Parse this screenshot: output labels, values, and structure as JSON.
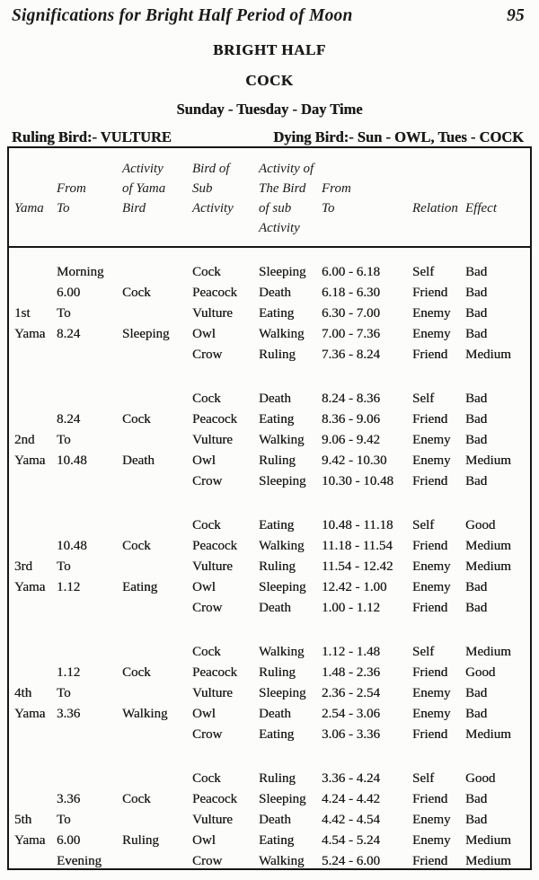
{
  "page": {
    "header_title": "Significations for Bright Half Period of Moon",
    "page_number": "95",
    "section_title": "BRIGHT HALF",
    "bird_title": "COCK",
    "day_line": "Sunday - Tuesday - Day Time",
    "ruling_bird": "Ruling Bird:- VULTURE",
    "dying_bird": "Dying Bird:- Sun - OWL, Tues - COCK"
  },
  "table": {
    "column_names": [
      "Yama",
      "From To",
      "Activity of Yama Bird",
      "Bird of Sub Activity",
      "Activity of The Bird of sub Activity",
      "From To",
      "Relation",
      "Effect"
    ],
    "header_rows": [
      [
        "",
        "",
        "Activity",
        "Bird of",
        "Activity of",
        "",
        "",
        ""
      ],
      [
        "",
        "From",
        "of Yama",
        "Sub",
        "The Bird",
        "From",
        "",
        ""
      ],
      [
        "Yama",
        "To",
        "Bird",
        "Activity",
        "of sub",
        "To",
        "Relation",
        "Effect"
      ],
      [
        "",
        "",
        "",
        "",
        "Activity",
        "",
        "",
        ""
      ]
    ],
    "blocks": [
      {
        "rows": [
          [
            "",
            "Morning",
            "",
            "Cock",
            "Sleeping",
            "6.00 - 6.18",
            "Self",
            "Bad"
          ],
          [
            "",
            "6.00",
            "Cock",
            "Peacock",
            "Death",
            "6.18 - 6.30",
            "Friend",
            "Bad"
          ],
          [
            "1st",
            "To",
            "",
            "Vulture",
            "Eating",
            "6.30 - 7.00",
            "Enemy",
            "Bad"
          ],
          [
            "Yama",
            "8.24",
            "Sleeping",
            "Owl",
            "Walking",
            "7.00 - 7.36",
            "Enemy",
            "Bad"
          ],
          [
            "",
            "",
            "",
            "Crow",
            "Ruling",
            "7.36 - 8.24",
            "Friend",
            "Medium"
          ]
        ]
      },
      {
        "rows": [
          [
            "",
            "",
            "",
            "Cock",
            "Death",
            "8.24 - 8.36",
            "Self",
            "Bad"
          ],
          [
            "",
            "8.24",
            "Cock",
            "Peacock",
            "Eating",
            "8.36 - 9.06",
            "Friend",
            "Bad"
          ],
          [
            "2nd",
            "To",
            "",
            "Vulture",
            "Walking",
            "9.06 - 9.42",
            "Enemy",
            "Bad"
          ],
          [
            "Yama",
            "10.48",
            "Death",
            "Owl",
            "Ruling",
            "9.42 - 10.30",
            "Enemy",
            "Medium"
          ],
          [
            "",
            "",
            "",
            "Crow",
            "Sleeping",
            "10.30 - 10.48",
            "Friend",
            "Bad"
          ]
        ]
      },
      {
        "rows": [
          [
            "",
            "",
            "",
            "Cock",
            "Eating",
            "10.48 - 11.18",
            "Self",
            "Good"
          ],
          [
            "",
            "10.48",
            "Cock",
            "Peacock",
            "Walking",
            "11.18 - 11.54",
            "Friend",
            "Medium"
          ],
          [
            "3rd",
            "To",
            "",
            "Vulture",
            "Ruling",
            "11.54 - 12.42",
            "Enemy",
            "Medium"
          ],
          [
            "Yama",
            "1.12",
            "Eating",
            "Owl",
            "Sleeping",
            "12.42 - 1.00",
            "Enemy",
            "Bad"
          ],
          [
            "",
            "",
            "",
            "Crow",
            "Death",
            "1.00 - 1.12",
            "Friend",
            "Bad"
          ]
        ]
      },
      {
        "rows": [
          [
            "",
            "",
            "",
            "Cock",
            "Walking",
            "1.12 - 1.48",
            "Self",
            "Medium"
          ],
          [
            "",
            "1.12",
            "Cock",
            "Peacock",
            "Ruling",
            "1.48 - 2.36",
            "Friend",
            "Good"
          ],
          [
            "4th",
            "To",
            "",
            "Vulture",
            "Sleeping",
            "2.36 - 2.54",
            "Enemy",
            "Bad"
          ],
          [
            "Yama",
            "3.36",
            "Walking",
            "Owl",
            "Death",
            "2.54 - 3.06",
            "Enemy",
            "Bad"
          ],
          [
            "",
            "",
            "",
            "Crow",
            "Eating",
            "3.06 - 3.36",
            "Friend",
            "Medium"
          ]
        ]
      },
      {
        "rows": [
          [
            "",
            "",
            "",
            "Cock",
            "Ruling",
            "3.36 - 4.24",
            "Self",
            "Good"
          ],
          [
            "",
            "3.36",
            "Cock",
            "Peacock",
            "Sleeping",
            "4.24 - 4.42",
            "Friend",
            "Bad"
          ],
          [
            "5th",
            "To",
            "",
            "Vulture",
            "Death",
            "4.42 - 4.54",
            "Enemy",
            "Bad"
          ],
          [
            "Yama",
            "6.00",
            "Ruling",
            "Owl",
            "Eating",
            "4.54 - 5.24",
            "Enemy",
            "Medium"
          ],
          [
            "",
            "Evening",
            "",
            "Crow",
            "Walking",
            "5.24 - 6.00",
            "Friend",
            "Medium"
          ]
        ]
      }
    ]
  },
  "colors": {
    "ink": "#1a1a1a",
    "paper": "#fcfcfa",
    "border": "#161616"
  }
}
